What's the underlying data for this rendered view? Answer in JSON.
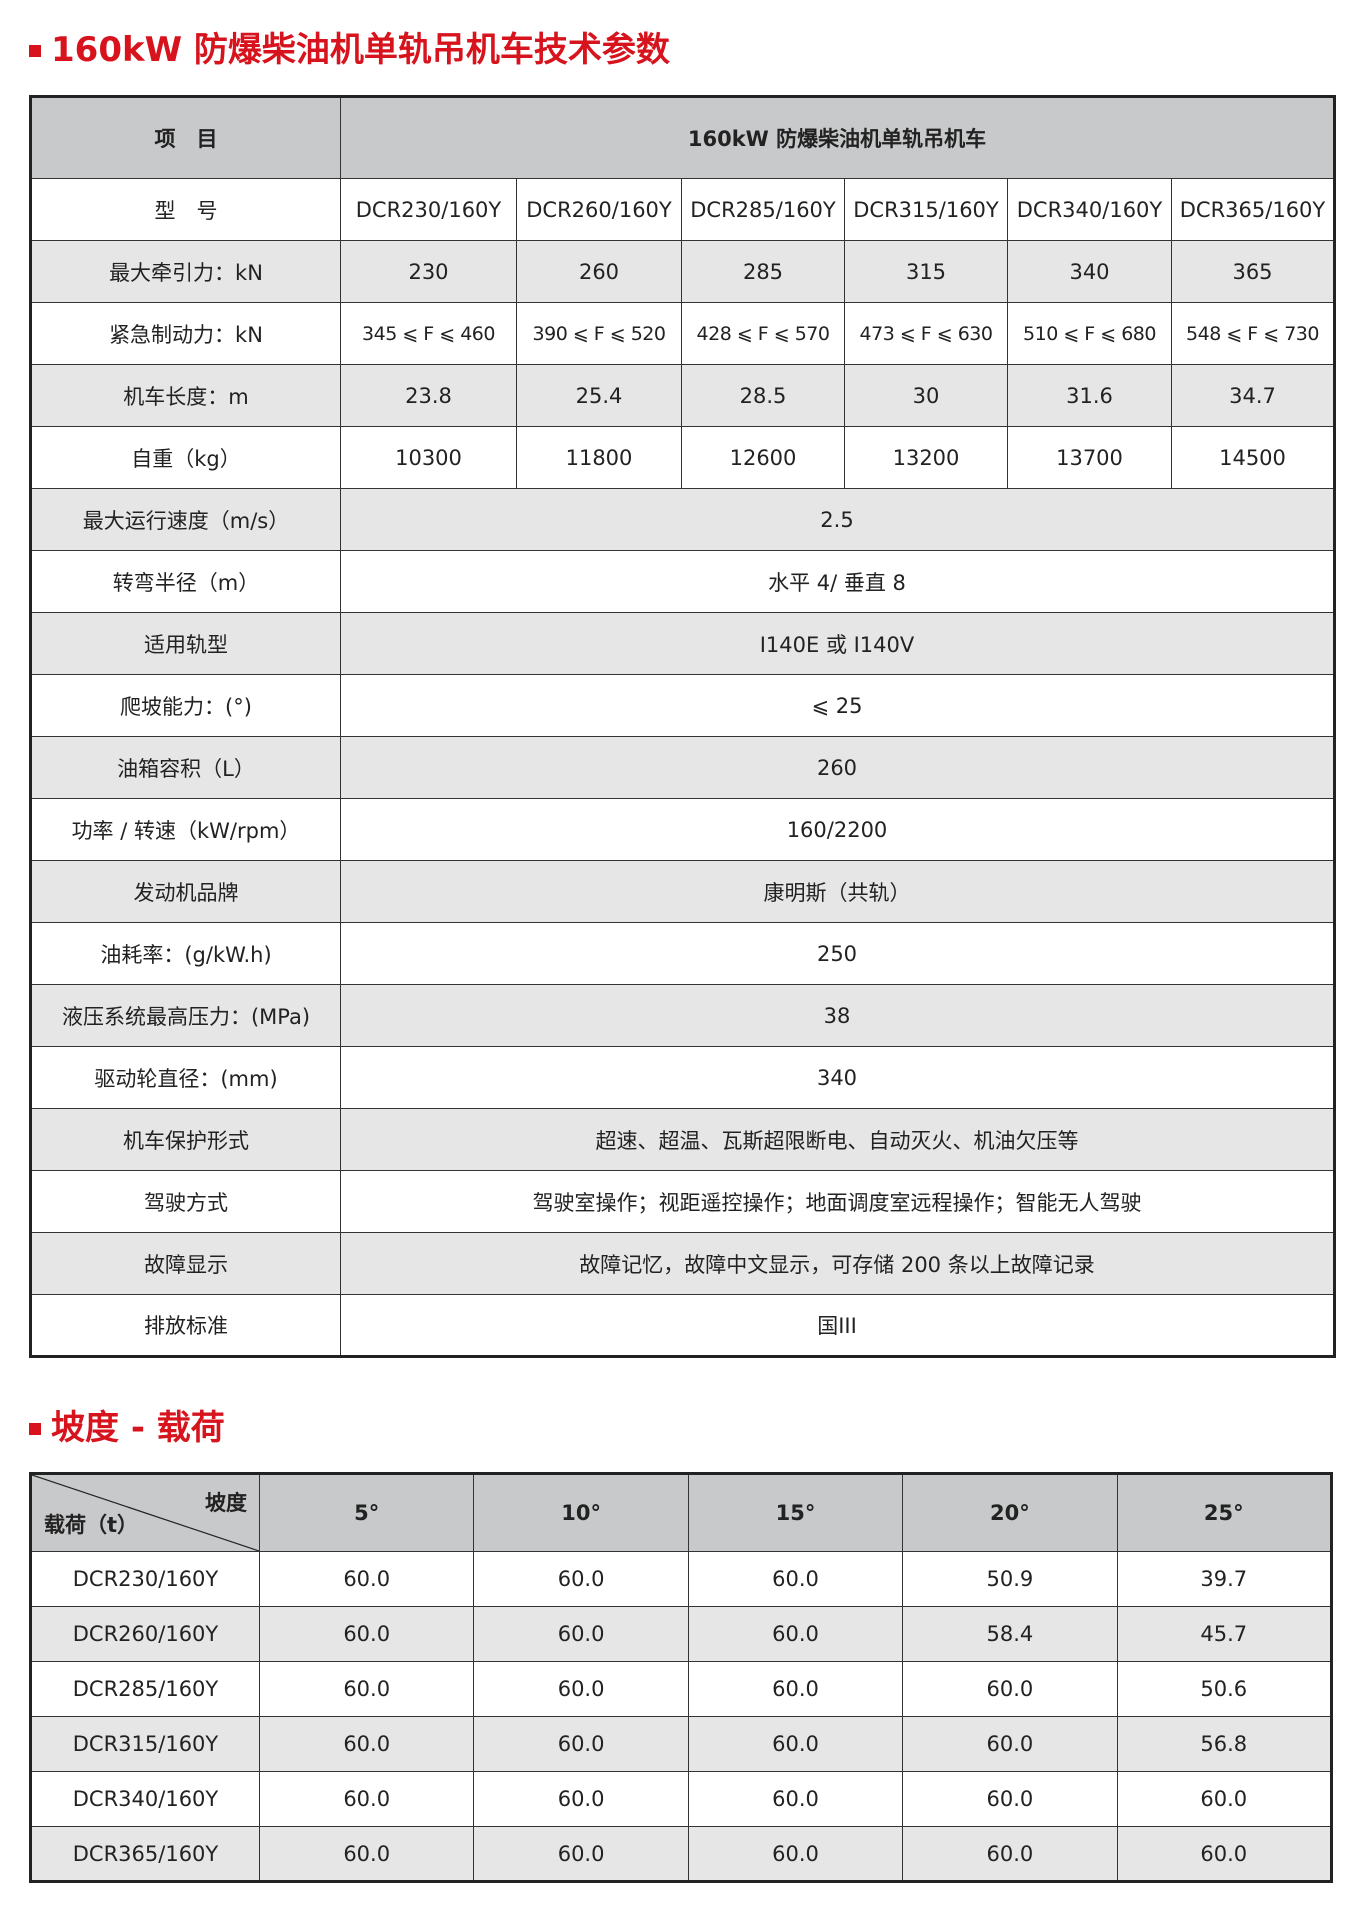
{
  "colors": {
    "accent": "#d7141d",
    "header_bg": "#c8c9ca",
    "alt_row_bg": "#e6e6e6"
  },
  "spec_section": {
    "title": "160kW 防爆柴油机单轨吊机车技术参数",
    "header": {
      "item_label": "项　目",
      "product_label": "160kW 防爆柴油机单轨吊机车"
    },
    "rows": [
      {
        "label": "型　号",
        "values": [
          "DCR230/160Y",
          "DCR260/160Y",
          "DCR285/160Y",
          "DCR315/160Y",
          "DCR340/160Y",
          "DCR365/160Y"
        ]
      },
      {
        "label": "最大牵引力：kN",
        "values": [
          "230",
          "260",
          "285",
          "315",
          "340",
          "365"
        ]
      },
      {
        "label": "紧急制动力：kN",
        "values": [
          "345 ⩽ F ⩽ 460",
          "390 ⩽ F ⩽ 520",
          "428 ⩽ F ⩽ 570",
          "473 ⩽ F ⩽ 630",
          "510 ⩽ F ⩽ 680",
          "548 ⩽ F ⩽ 730"
        ]
      },
      {
        "label": "机车长度：m",
        "values": [
          "23.8",
          "25.4",
          "28.5",
          "30",
          "31.6",
          "34.7"
        ]
      },
      {
        "label": "自重（kg）",
        "values": [
          "10300",
          "11800",
          "12600",
          "13200",
          "13700",
          "14500"
        ]
      },
      {
        "label": "最大运行速度（m/s）",
        "value": "2.5"
      },
      {
        "label": "转弯半径（m）",
        "value": "水平 4/ 垂直 8"
      },
      {
        "label": "适用轨型",
        "value": "I140E 或 I140V"
      },
      {
        "label": "爬坡能力：(°)",
        "value": "⩽ 25"
      },
      {
        "label": "油箱容积（L）",
        "value": "260"
      },
      {
        "label": "功率 / 转速（kW/rpm）",
        "value": "160/2200"
      },
      {
        "label": "发动机品牌",
        "value": "康明斯（共轨）"
      },
      {
        "label": "油耗率：(g/kW.h)",
        "value": "250"
      },
      {
        "label": "液压系统最高压力：(MPa)",
        "value": "38"
      },
      {
        "label": "驱动轮直径：(mm)",
        "value": "340"
      },
      {
        "label": "机车保护形式",
        "value": "超速、超温、瓦斯超限断电、自动灭火、机油欠压等"
      },
      {
        "label": "驾驶方式",
        "value": "驾驶室操作；视距遥控操作；地面调度室远程操作；智能无人驾驶"
      },
      {
        "label": "故障显示",
        "value": "故障记忆，故障中文显示，可存储 200 条以上故障记录"
      },
      {
        "label": "排放标准",
        "value": "国III"
      }
    ]
  },
  "slope_section": {
    "title": "坡度 - 载荷",
    "corner_top": "坡度",
    "corner_bottom": "载荷（t）",
    "slopes": [
      "5°",
      "10°",
      "15°",
      "20°",
      "25°"
    ],
    "rows": [
      {
        "model": "DCR230/160Y",
        "values": [
          "60.0",
          "60.0",
          "60.0",
          "50.9",
          "39.7"
        ]
      },
      {
        "model": "DCR260/160Y",
        "values": [
          "60.0",
          "60.0",
          "60.0",
          "58.4",
          "45.7"
        ]
      },
      {
        "model": "DCR285/160Y",
        "values": [
          "60.0",
          "60.0",
          "60.0",
          "60.0",
          "50.6"
        ]
      },
      {
        "model": "DCR315/160Y",
        "values": [
          "60.0",
          "60.0",
          "60.0",
          "60.0",
          "56.8"
        ]
      },
      {
        "model": "DCR340/160Y",
        "values": [
          "60.0",
          "60.0",
          "60.0",
          "60.0",
          "60.0"
        ]
      },
      {
        "model": "DCR365/160Y",
        "values": [
          "60.0",
          "60.0",
          "60.0",
          "60.0",
          "60.0"
        ]
      }
    ]
  }
}
